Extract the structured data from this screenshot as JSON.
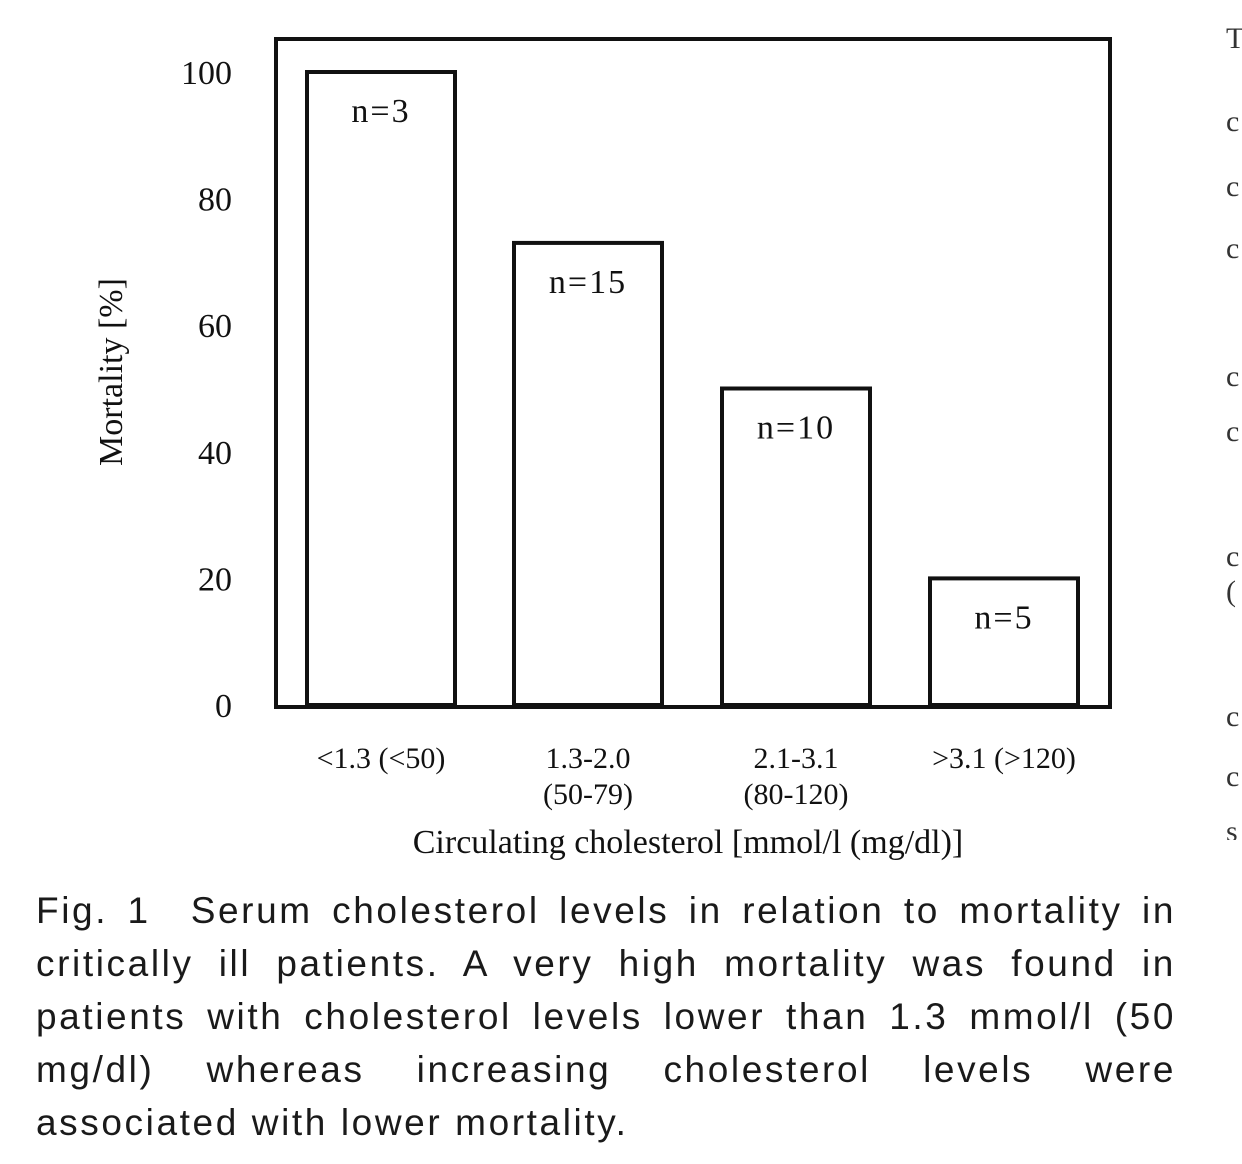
{
  "chart_data": {
    "type": "bar",
    "categories": [
      [
        "<1.3 (<50)"
      ],
      [
        "1.3-2.0",
        "(50-79)"
      ],
      [
        "2.1-3.1",
        "(80-120)"
      ],
      [
        ">3.1 (>120)"
      ]
    ],
    "values": [
      100,
      73,
      50,
      20
    ],
    "bar_labels": [
      "n=3",
      "n=15",
      "n=10",
      "n=5"
    ],
    "xlabel": "Circulating cholesterol [mmol/l (mg/dl)]",
    "ylabel": "Mortality [%]",
    "ylim": [
      0,
      100
    ],
    "yticks": [
      "0",
      "20",
      "40",
      "60",
      "80",
      "100"
    ],
    "grid": false,
    "bar_fill": "#ffffff",
    "bar_stroke": "#111111"
  },
  "caption": {
    "label": "Fig. 1",
    "text": "Serum cholesterol levels in relation to mortality in critically ill patients. A very high mortality was found in patients with cholesterol levels lower than 1.3 mmol/l (50 mg/dl) whereas increasing cholesterol levels were associated with lower mortality."
  }
}
